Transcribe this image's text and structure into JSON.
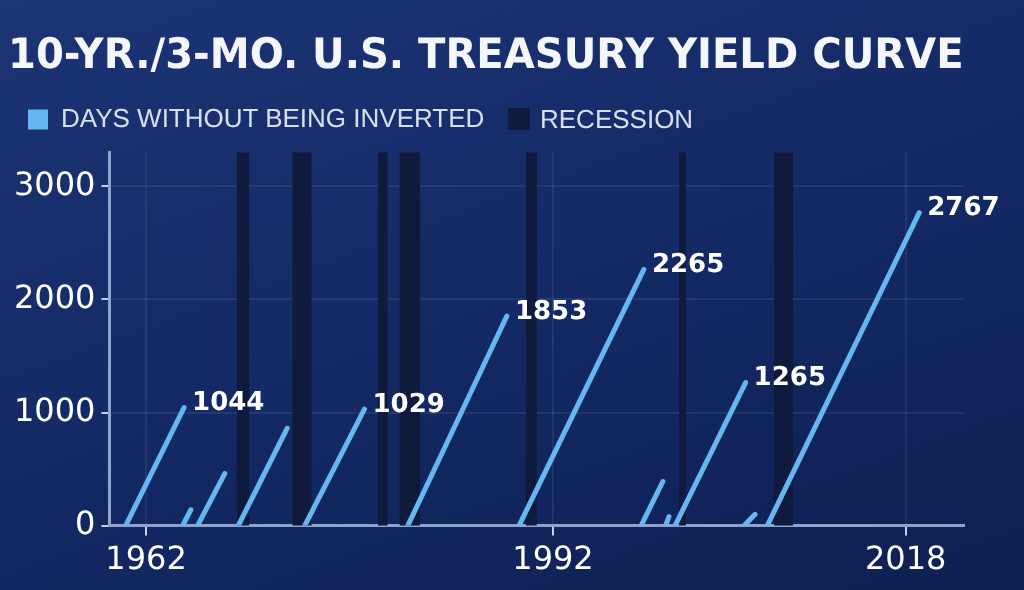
{
  "chart_data": {
    "type": "line",
    "title": "10-YR./3-MO. U.S. TREASURY YIELD CURVE",
    "x": [
      1960.5,
      1964.8,
      null,
      1964.7,
      1965.3,
      null,
      1965.8,
      1967.8,
      null,
      1968.8,
      1972.4,
      null,
      1973.7,
      1978.1,
      null,
      1981.3,
      1988.6,
      null,
      1989.5,
      1998.7,
      null,
      1998.5,
      2000.1,
      null,
      2000.3,
      2000.55,
      null,
      2001.0,
      2006.2,
      null,
      2006.1,
      2006.9,
      null,
      2007.8,
      2019.0
    ],
    "series": [
      {
        "name": "DAYS WITHOUT BEING INVERTED",
        "color": "#66b6f2",
        "values": [
          0,
          1044,
          null,
          0,
          140,
          null,
          0,
          460,
          null,
          0,
          860,
          null,
          0,
          1029,
          null,
          0,
          1853,
          null,
          0,
          2265,
          null,
          0,
          390,
          null,
          0,
          80,
          null,
          0,
          1265,
          null,
          0,
          100,
          null,
          0,
          2767
        ],
        "value_labels": [
          null,
          "1044",
          null,
          null,
          null,
          null,
          null,
          null,
          null,
          null,
          null,
          null,
          null,
          "1029",
          null,
          null,
          "1853",
          null,
          null,
          "2265",
          null,
          null,
          null,
          null,
          null,
          null,
          null,
          null,
          "1265",
          null,
          null,
          null,
          null,
          null,
          "2767"
        ]
      }
    ],
    "bands": [
      {
        "axis": "x",
        "from": 1968.7,
        "to": 1969.6,
        "label": "RECESSION",
        "color": "#0f1a3c"
      },
      {
        "axis": "x",
        "from": 1972.8,
        "to": 1974.2,
        "color": "#0f1a3c"
      },
      {
        "axis": "x",
        "from": 1979.1,
        "to": 1979.8,
        "color": "#0f1a3c"
      },
      {
        "axis": "x",
        "from": 1980.7,
        "to": 1982.2,
        "color": "#0f1a3c"
      },
      {
        "axis": "x",
        "from": 1990.0,
        "to": 1990.8,
        "color": "#0f1a3c"
      },
      {
        "axis": "x",
        "from": 2001.3,
        "to": 2001.8,
        "color": "#0f1a3c"
      },
      {
        "axis": "x",
        "from": 2008.3,
        "to": 2009.7,
        "color": "#0f1a3c"
      }
    ],
    "xlim": [
      1959.3,
      2022.3
    ],
    "xticks": [
      1962,
      1992,
      2018
    ],
    "ylim": [
      0,
      3300
    ],
    "yticks": [
      0,
      1000,
      2000,
      3000
    ],
    "grid": true,
    "legend": "top left",
    "marker": "none",
    "line_style": "solid"
  }
}
